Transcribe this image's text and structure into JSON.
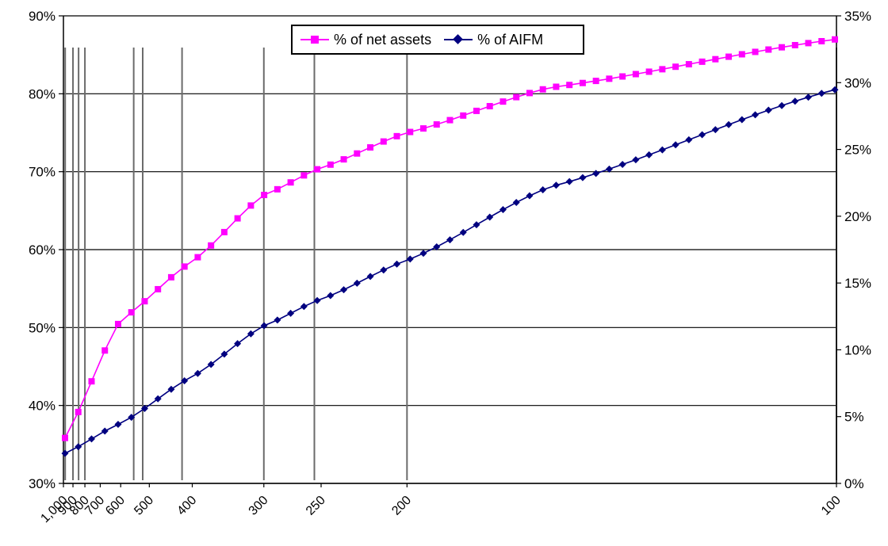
{
  "chart_data": {
    "type": "line",
    "title": "",
    "xlabel": "",
    "ylabel": "",
    "y_left": {
      "ticks": [
        "30%",
        "40%",
        "50%",
        "60%",
        "70%",
        "80%",
        "90%"
      ],
      "range": [
        30,
        90
      ]
    },
    "y_right": {
      "ticks": [
        "0%",
        "5%",
        "10%",
        "15%",
        "20%",
        "25%",
        "30%",
        "35%"
      ],
      "range": [
        0,
        35
      ]
    },
    "x_axis": {
      "scale": "reciprocal",
      "range": [
        1000,
        100
      ],
      "ticks": [
        {
          "value": 1000,
          "label": "1,000"
        },
        {
          "value": 900,
          "label": "900"
        },
        {
          "value": 800,
          "label": "800"
        },
        {
          "value": 700,
          "label": "700"
        },
        {
          "value": 600,
          "label": "600"
        },
        {
          "value": 500,
          "label": "500"
        },
        {
          "value": 400,
          "label": "400"
        },
        {
          "value": 300,
          "label": "300"
        },
        {
          "value": 250,
          "label": "250"
        },
        {
          "value": 200,
          "label": "200"
        },
        {
          "value": 100,
          "label": "100"
        }
      ]
    },
    "grid": true,
    "legend_position": "top-center",
    "vertical_reference_lines": [
      980,
      900,
      850,
      800,
      550,
      520,
      420,
      300,
      255,
      200,
      100
    ],
    "series": [
      {
        "name": "% of net assets",
        "axis": "left",
        "color": "#ff00ff",
        "marker": "square",
        "points": [
          [
            1000,
            35.5
          ],
          [
            600,
            51.0
          ],
          [
            400,
            58.5
          ],
          [
            300,
            67.0
          ],
          [
            250,
            70.5
          ],
          [
            200,
            75.0
          ],
          [
            150,
            80.8
          ],
          [
            100,
            87.0
          ]
        ]
      },
      {
        "name": "% of AIFM",
        "axis": "right",
        "color": "#000080",
        "marker": "diamond",
        "points": [
          [
            1000,
            2.2
          ],
          [
            600,
            4.5
          ],
          [
            400,
            8.0
          ],
          [
            300,
            11.8
          ],
          [
            250,
            13.8
          ],
          [
            200,
            16.7
          ],
          [
            150,
            22.2
          ],
          [
            100,
            29.5
          ]
        ]
      }
    ]
  },
  "legend": {
    "items": [
      {
        "label": "% of net assets",
        "color": "#ff00ff",
        "marker": "square"
      },
      {
        "label": "% of AIFM",
        "color": "#000080",
        "marker": "diamond"
      }
    ]
  }
}
